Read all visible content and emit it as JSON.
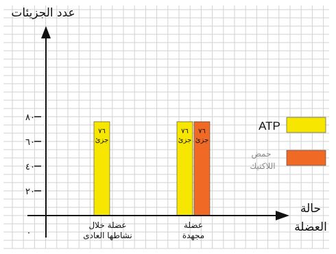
{
  "chart_data": {
    "type": "bar",
    "ylabel": "عدد الجزيئات",
    "xlabel_lines": [
      "حالة",
      "العضلة"
    ],
    "origin_label": "٠",
    "y_ticks": [
      {
        "value": 20,
        "label": "٢٠"
      },
      {
        "value": 40,
        "label": "٤٠"
      },
      {
        "value": 60,
        "label": "٦٠"
      },
      {
        "value": 80,
        "label": "٨٠"
      }
    ],
    "ylim": [
      0,
      110
    ],
    "grid": true,
    "legend_position": "right",
    "categories": [
      {
        "label_lines": [
          "عضلة خلال",
          "نشاطها العادى"
        ]
      },
      {
        "label_lines": [
          "عضلة",
          "مجهدة"
        ]
      }
    ],
    "series": [
      {
        "name": "ATP",
        "color": "#f7e600",
        "values": [
          76,
          76
        ],
        "data_labels": [
          [
            "٧٦",
            "جزئ"
          ],
          [
            "٧٦",
            "جزئ"
          ]
        ]
      },
      {
        "name_lines": [
          "حمض",
          "اللاكتيك"
        ],
        "color": "#f06a25",
        "values": [
          null,
          76
        ],
        "data_labels": [
          null,
          [
            "٧٦",
            "جزئ"
          ]
        ]
      }
    ]
  }
}
